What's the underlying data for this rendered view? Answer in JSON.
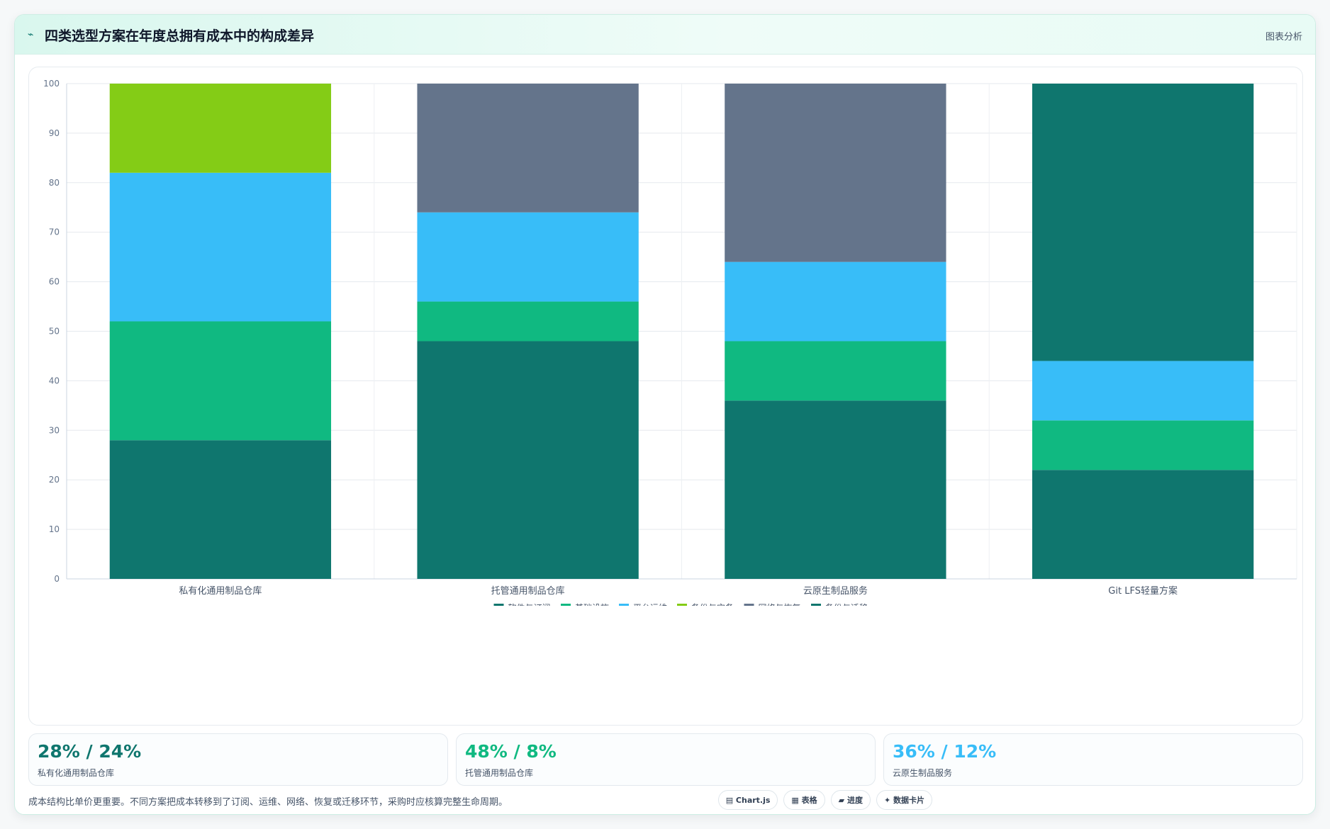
{
  "header": {
    "title": "四类选型方案在年度总拥有成本中的构成差异",
    "link": "图表分析"
  },
  "chart_data": {
    "type": "bar",
    "stacked": true,
    "categories": [
      "私有化通用制品仓库",
      "托管通用制品仓库",
      "云原生制品服务",
      "Git LFS轻量方案"
    ],
    "series": [
      {
        "name": "软件与订阅",
        "color": "#0f766e",
        "values": [
          28,
          48,
          36,
          22
        ]
      },
      {
        "name": "基础设施",
        "color": "#10b981",
        "values": [
          24,
          8,
          12,
          10
        ]
      },
      {
        "name": "平台运维",
        "color": "#38bdf8",
        "values": [
          30,
          18,
          16,
          12
        ]
      },
      {
        "name": "备份与灾备",
        "color": "#84cc16",
        "values": [
          18,
          0,
          0,
          0
        ]
      },
      {
        "name": "网络与恢复",
        "color": "#64748b",
        "values": [
          0,
          26,
          36,
          0
        ]
      },
      {
        "name": "备份与迁移",
        "color": "#0f766e",
        "values": [
          0,
          0,
          0,
          56
        ]
      }
    ],
    "ylim": [
      0,
      100
    ],
    "yticks": [
      0,
      10,
      20,
      30,
      40,
      50,
      60,
      70,
      80,
      90,
      100
    ],
    "grid": true,
    "legend_position": "bottom"
  },
  "kpis": [
    {
      "value": "28% / 24%",
      "label": "私有化通用制品仓库",
      "color": "#0f766e"
    },
    {
      "value": "48% / 8%",
      "label": "托管通用制品仓库",
      "color": "#10b981"
    },
    {
      "value": "36% / 12%",
      "label": "云原生制品服务",
      "color": "#38bdf8"
    }
  ],
  "footer": {
    "note": "成本结构比单价更重要。不同方案把成本转移到了订阅、运维、网络、恢复或迁移环节，采购时应核算完整生命周期。",
    "chips": [
      "▤ Chart.js",
      "▦ 表格",
      "▰ 进度",
      "✦ 数据卡片"
    ]
  }
}
